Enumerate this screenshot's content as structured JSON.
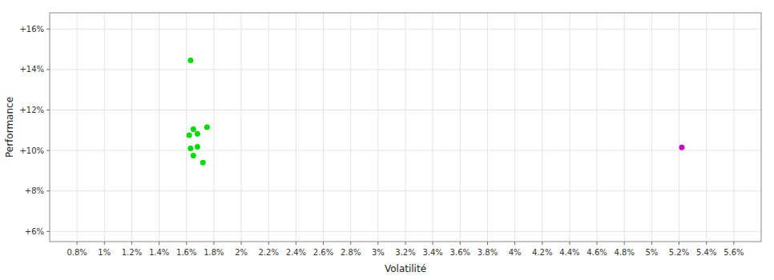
{
  "chart_data": {
    "type": "scatter",
    "xlabel": "Volatilité",
    "ylabel": "Performance",
    "xlim": [
      0.006,
      0.058
    ],
    "ylim": [
      0.055,
      0.168
    ],
    "xticks": [
      {
        "value": 0.008,
        "label": "0.8%"
      },
      {
        "value": 0.01,
        "label": "1%"
      },
      {
        "value": 0.012,
        "label": "1.2%"
      },
      {
        "value": 0.014,
        "label": "1.4%"
      },
      {
        "value": 0.016,
        "label": "1.6%"
      },
      {
        "value": 0.018,
        "label": "1.8%"
      },
      {
        "value": 0.02,
        "label": "2%"
      },
      {
        "value": 0.022,
        "label": "2.2%"
      },
      {
        "value": 0.024,
        "label": "2.4%"
      },
      {
        "value": 0.026,
        "label": "2.6%"
      },
      {
        "value": 0.028,
        "label": "2.8%"
      },
      {
        "value": 0.03,
        "label": "3%"
      },
      {
        "value": 0.032,
        "label": "3.2%"
      },
      {
        "value": 0.034,
        "label": "3.4%"
      },
      {
        "value": 0.036,
        "label": "3.6%"
      },
      {
        "value": 0.038,
        "label": "3.8%"
      },
      {
        "value": 0.04,
        "label": "4%"
      },
      {
        "value": 0.042,
        "label": "4.2%"
      },
      {
        "value": 0.044,
        "label": "4.4%"
      },
      {
        "value": 0.046,
        "label": "4.6%"
      },
      {
        "value": 0.048,
        "label": "4.8%"
      },
      {
        "value": 0.05,
        "label": "5%"
      },
      {
        "value": 0.052,
        "label": "5.2%"
      },
      {
        "value": 0.054,
        "label": "5.4%"
      },
      {
        "value": 0.056,
        "label": "5.6%"
      }
    ],
    "yticks": [
      {
        "value": 0.06,
        "label": "+6%"
      },
      {
        "value": 0.08,
        "label": "+8%"
      },
      {
        "value": 0.1,
        "label": "+10%"
      },
      {
        "value": 0.12,
        "label": "+12%"
      },
      {
        "value": 0.14,
        "label": "+14%"
      },
      {
        "value": 0.16,
        "label": "+16%"
      }
    ],
    "grid": true,
    "series": [
      {
        "color": "#00dd00",
        "x": [
          0.0163,
          0.0165,
          0.0175,
          0.0162,
          0.0168,
          0.0163,
          0.0168,
          0.0165,
          0.0172
        ],
        "values": [
          0.1445,
          0.1105,
          0.1115,
          0.1075,
          0.1082,
          0.101,
          0.1018,
          0.0975,
          0.094
        ]
      },
      {
        "color": "#cc00cc",
        "x": [
          0.0522
        ],
        "values": [
          0.1015
        ]
      }
    ]
  }
}
